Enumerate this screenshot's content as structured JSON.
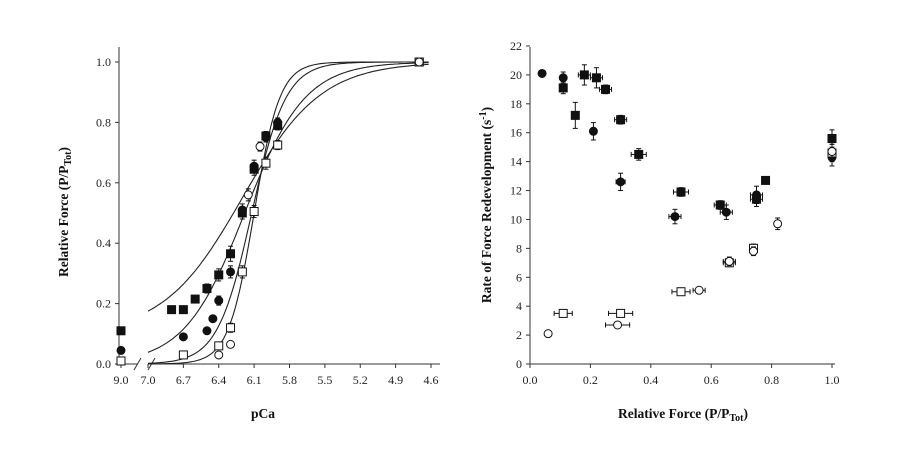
{
  "chart_data": [
    {
      "type": "scatter",
      "xlabel": "pCa",
      "ylabel": {
        "main": "Relative Force (P/P",
        "sub": "Tot",
        "close": ")"
      },
      "x_ticks": [
        "9.0",
        "7.0",
        "6.7",
        "6.4",
        "6.1",
        "5.8",
        "5.5",
        "5.2",
        "4.9",
        "4.6"
      ],
      "y_ticks": [
        "0.0",
        "0.2",
        "0.4",
        "0.6",
        "0.8",
        "1.0"
      ],
      "ylim": [
        0,
        1.0
      ],
      "xlim": [
        7.0,
        4.6
      ],
      "x_reversed": true,
      "axis_break": "between 9.0 and 7.0",
      "series": [
        {
          "marker": "filled-square",
          "points": [
            [
              9.0,
              0.11
            ],
            [
              6.8,
              0.18
            ],
            [
              6.7,
              0.18
            ],
            [
              6.6,
              0.215
            ],
            [
              6.5,
              0.25
            ],
            [
              6.4,
              0.295
            ],
            [
              6.3,
              0.365
            ],
            [
              6.2,
              0.5
            ],
            [
              6.1,
              0.645
            ],
            [
              6.0,
              0.755
            ],
            [
              5.9,
              0.79
            ],
            [
              4.7,
              1.0
            ]
          ],
          "errors": [
            0,
            0.01,
            0.01,
            0.01,
            0.015,
            0.02,
            0.025,
            0.02,
            0.02,
            0.015,
            0.015,
            0
          ]
        },
        {
          "marker": "filled-circle",
          "points": [
            [
              9.0,
              0.045
            ],
            [
              6.7,
              0.09
            ],
            [
              6.5,
              0.11
            ],
            [
              6.45,
              0.15
            ],
            [
              6.4,
              0.21
            ],
            [
              6.3,
              0.305
            ],
            [
              6.2,
              0.51
            ],
            [
              6.1,
              0.655
            ],
            [
              6.0,
              0.75
            ],
            [
              5.9,
              0.8
            ],
            [
              4.7,
              1.0
            ]
          ],
          "errors": [
            0,
            0,
            0,
            0,
            0.015,
            0.02,
            0.02,
            0.02,
            0.015,
            0.015,
            0
          ]
        },
        {
          "marker": "open-square",
          "points": [
            [
              9.0,
              0.01
            ],
            [
              6.7,
              0.03
            ],
            [
              6.4,
              0.06
            ],
            [
              6.3,
              0.12
            ],
            [
              6.2,
              0.305
            ],
            [
              6.1,
              0.505
            ],
            [
              6.0,
              0.665
            ],
            [
              5.9,
              0.725
            ],
            [
              4.7,
              1.0
            ]
          ],
          "errors": [
            0,
            0,
            0.01,
            0.015,
            0.02,
            0.02,
            0.02,
            0.015,
            0
          ]
        },
        {
          "marker": "open-circle",
          "points": [
            [
              6.4,
              0.03
            ],
            [
              6.3,
              0.065
            ],
            [
              6.15,
              0.56
            ],
            [
              6.05,
              0.72
            ],
            [
              4.7,
              1.0
            ]
          ],
          "errors": [
            0,
            0,
            0.02,
            0.015,
            0
          ]
        }
      ],
      "fit_curves": [
        {
          "pca50": 6.2,
          "nH": 1.3,
          "base": 0.1
        },
        {
          "pca50": 6.18,
          "nH": 1.7,
          "base": 0.0
        },
        {
          "pca50": 6.12,
          "nH": 3.0,
          "base": 0.0
        },
        {
          "pca50": 6.1,
          "nH": 4.0,
          "base": 0.0
        }
      ]
    },
    {
      "type": "scatter",
      "xlabel": {
        "main": "Relative Force (P/P",
        "sub": "Tot",
        "close": ")"
      },
      "ylabel": {
        "main": "Rate of Force Redevelopment (s",
        "sup": "-1",
        "close": ")"
      },
      "x_ticks": [
        "0.0",
        "0.2",
        "0.4",
        "0.6",
        "0.8",
        "1.0"
      ],
      "y_ticks": [
        "0",
        "2",
        "4",
        "6",
        "8",
        "10",
        "12",
        "14",
        "16",
        "18",
        "20",
        "22"
      ],
      "xlim": [
        0,
        1.0
      ],
      "ylim": [
        0,
        22
      ],
      "series": [
        {
          "marker": "filled-square",
          "points": [
            [
              0.11,
              19.1
            ],
            [
              0.15,
              17.2
            ],
            [
              0.18,
              20.0
            ],
            [
              0.22,
              19.8
            ],
            [
              0.25,
              19.0
            ],
            [
              0.3,
              16.9
            ],
            [
              0.36,
              14.5
            ],
            [
              0.5,
              11.9
            ],
            [
              0.63,
              11.0
            ],
            [
              0.75,
              11.4
            ],
            [
              0.78,
              12.7
            ],
            [
              1.0,
              15.6
            ]
          ],
          "xerr": [
            0,
            0,
            0.02,
            0.02,
            0.02,
            0.02,
            0.025,
            0.025,
            0.02,
            0.02,
            0,
            0
          ],
          "yerr": [
            0.4,
            0.9,
            0.7,
            0.7,
            0.3,
            0.3,
            0.4,
            0.3,
            0.3,
            0.5,
            0,
            0.6
          ]
        },
        {
          "marker": "filled-circle",
          "points": [
            [
              0.04,
              20.1
            ],
            [
              0.11,
              19.8
            ],
            [
              0.21,
              16.1
            ],
            [
              0.3,
              12.6
            ],
            [
              0.48,
              10.2
            ],
            [
              0.65,
              10.5
            ],
            [
              0.75,
              11.7
            ],
            [
              1.0,
              14.3
            ]
          ],
          "xerr": [
            0,
            0,
            0.01,
            0.015,
            0.02,
            0.02,
            0.02,
            0
          ],
          "yerr": [
            0,
            0.4,
            0.6,
            0.6,
            0.5,
            0.5,
            0.6,
            0.6
          ]
        },
        {
          "marker": "open-square",
          "points": [
            [
              0.11,
              3.5
            ],
            [
              0.3,
              3.5
            ],
            [
              0.5,
              5.0
            ],
            [
              0.66,
              7.0
            ],
            [
              0.74,
              8.0
            ],
            [
              1.0,
              14.6
            ]
          ],
          "xerr": [
            0.03,
            0.04,
            0.03,
            0.02,
            0,
            0
          ],
          "yerr": [
            0,
            0,
            0,
            0.2,
            0.3,
            0.6
          ]
        },
        {
          "marker": "open-circle",
          "points": [
            [
              0.06,
              2.1
            ],
            [
              0.29,
              2.7
            ],
            [
              0.56,
              5.1
            ],
            [
              0.66,
              7.1
            ],
            [
              0.74,
              7.8
            ],
            [
              0.82,
              9.7
            ],
            [
              1.0,
              14.7
            ]
          ],
          "xerr": [
            0,
            0.04,
            0.02,
            0.02,
            0,
            0,
            0
          ],
          "yerr": [
            0,
            0,
            0,
            0.3,
            0.3,
            0.4,
            0.5
          ]
        }
      ]
    }
  ]
}
